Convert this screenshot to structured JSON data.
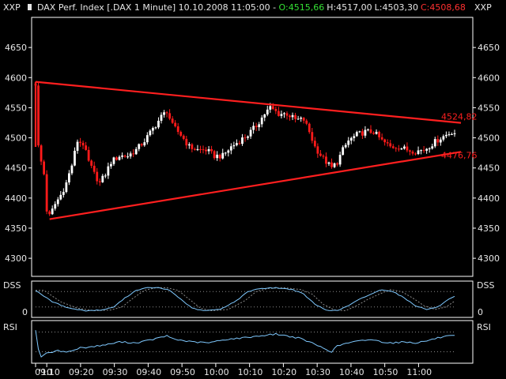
{
  "header": {
    "symbol_left": "XXP",
    "symbol_right": "XXP",
    "title": "DAX Perf. Index [.DAX  1 Minute] 10.10.2008 11:05:00 - ",
    "open": "O:4515,66",
    "high": "H:4517,00",
    "low": "L:4503,30",
    "close": "C:4508,68"
  },
  "colors": {
    "background": "#000000",
    "text": "#e6e6e6",
    "up_candle": "#ffffff",
    "down_candle": "#ff1a1a",
    "open_text": "#34e034",
    "close_text": "#ff3030",
    "trendline": "#ff1f1f",
    "indicator_line": "#7fc9ff",
    "dotted": "#8a8a8a"
  },
  "chart_data": [
    {
      "type": "candlestick",
      "name": "price",
      "ylim": [
        4270,
        4700
      ],
      "y_ticks": [
        4300,
        4350,
        4400,
        4450,
        4500,
        4550,
        4600,
        4650
      ],
      "time_labels": [
        "'10",
        "09:10",
        "09:20",
        "09:30",
        "09:40",
        "09:50",
        "10:00",
        "10:10",
        "10:20",
        "10:30",
        "10:40",
        "10:50",
        "11:00"
      ],
      "trendlines": [
        {
          "name": "upper",
          "from": [
            0,
            4593
          ],
          "to": [
            150,
            4524.82
          ],
          "label": "4524,82"
        },
        {
          "name": "lower",
          "from": [
            5,
            4365
          ],
          "to": [
            150,
            4476.76
          ],
          "label": "4476,76"
        }
      ],
      "anchors": [
        [
          0,
          4590
        ],
        [
          1,
          4485
        ],
        [
          2,
          4460
        ],
        [
          3,
          4440
        ],
        [
          4,
          4380
        ],
        [
          5,
          4370
        ],
        [
          7,
          4390
        ],
        [
          9,
          4405
        ],
        [
          11,
          4425
        ],
        [
          13,
          4455
        ],
        [
          15,
          4495
        ],
        [
          17,
          4490
        ],
        [
          19,
          4460
        ],
        [
          21,
          4440
        ],
        [
          23,
          4425
        ],
        [
          25,
          4440
        ],
        [
          27,
          4460
        ],
        [
          30,
          4470
        ],
        [
          33,
          4470
        ],
        [
          36,
          4480
        ],
        [
          39,
          4495
        ],
        [
          42,
          4515
        ],
        [
          45,
          4535
        ],
        [
          47,
          4545
        ],
        [
          49,
          4520
        ],
        [
          52,
          4505
        ],
        [
          55,
          4485
        ],
        [
          58,
          4480
        ],
        [
          61,
          4480
        ],
        [
          64,
          4470
        ],
        [
          67,
          4470
        ],
        [
          70,
          4485
        ],
        [
          73,
          4495
        ],
        [
          76,
          4505
        ],
        [
          79,
          4520
        ],
        [
          82,
          4540
        ],
        [
          84,
          4550
        ],
        [
          87,
          4540
        ],
        [
          90,
          4540
        ],
        [
          93,
          4530
        ],
        [
          96,
          4530
        ],
        [
          98,
          4510
        ],
        [
          100,
          4485
        ],
        [
          103,
          4465
        ],
        [
          106,
          4450
        ],
        [
          108,
          4460
        ],
        [
          110,
          4480
        ],
        [
          112,
          4495
        ],
        [
          115,
          4505
        ],
        [
          118,
          4510
        ],
        [
          121,
          4510
        ],
        [
          124,
          4495
        ],
        [
          127,
          4485
        ],
        [
          130,
          4485
        ],
        [
          133,
          4480
        ],
        [
          136,
          4478
        ],
        [
          139,
          4480
        ],
        [
          142,
          4490
        ],
        [
          145,
          4500
        ],
        [
          147,
          4505
        ],
        [
          149,
          4510
        ],
        [
          150,
          4508.68
        ]
      ]
    },
    {
      "type": "line",
      "name": "DSS",
      "ylim": [
        -15,
        115
      ],
      "y_ticks": [
        0
      ],
      "y_tick_labels": [
        "0"
      ],
      "dotted_levels": [
        20,
        80
      ],
      "anchors": [
        [
          0,
          85
        ],
        [
          6,
          40
        ],
        [
          12,
          15
        ],
        [
          18,
          5
        ],
        [
          24,
          8
        ],
        [
          28,
          20
        ],
        [
          32,
          55
        ],
        [
          36,
          85
        ],
        [
          40,
          95
        ],
        [
          44,
          95
        ],
        [
          48,
          85
        ],
        [
          52,
          50
        ],
        [
          56,
          15
        ],
        [
          60,
          5
        ],
        [
          66,
          10
        ],
        [
          72,
          45
        ],
        [
          76,
          80
        ],
        [
          80,
          92
        ],
        [
          86,
          95
        ],
        [
          92,
          88
        ],
        [
          96,
          70
        ],
        [
          100,
          30
        ],
        [
          104,
          8
        ],
        [
          108,
          5
        ],
        [
          112,
          25
        ],
        [
          116,
          50
        ],
        [
          120,
          70
        ],
        [
          124,
          88
        ],
        [
          128,
          80
        ],
        [
          132,
          55
        ],
        [
          136,
          25
        ],
        [
          140,
          10
        ],
        [
          144,
          20
        ],
        [
          148,
          50
        ],
        [
          150,
          60
        ]
      ]
    },
    {
      "type": "line",
      "name": "RSI",
      "ylim": [
        10,
        90
      ],
      "y_ticks": [],
      "dotted_levels": [
        30,
        70
      ],
      "anchors": [
        [
          0,
          75
        ],
        [
          1,
          35
        ],
        [
          2,
          20
        ],
        [
          3,
          25
        ],
        [
          8,
          32
        ],
        [
          12,
          30
        ],
        [
          16,
          38
        ],
        [
          20,
          40
        ],
        [
          26,
          45
        ],
        [
          30,
          50
        ],
        [
          36,
          48
        ],
        [
          42,
          55
        ],
        [
          47,
          62
        ],
        [
          50,
          55
        ],
        [
          56,
          50
        ],
        [
          62,
          48
        ],
        [
          68,
          55
        ],
        [
          74,
          58
        ],
        [
          80,
          62
        ],
        [
          86,
          66
        ],
        [
          90,
          62
        ],
        [
          94,
          58
        ],
        [
          98,
          50
        ],
        [
          102,
          40
        ],
        [
          106,
          30
        ],
        [
          108,
          42
        ],
        [
          112,
          48
        ],
        [
          116,
          52
        ],
        [
          120,
          55
        ],
        [
          124,
          50
        ],
        [
          128,
          48
        ],
        [
          132,
          50
        ],
        [
          136,
          48
        ],
        [
          140,
          52
        ],
        [
          144,
          58
        ],
        [
          148,
          62
        ],
        [
          150,
          62
        ]
      ]
    }
  ]
}
